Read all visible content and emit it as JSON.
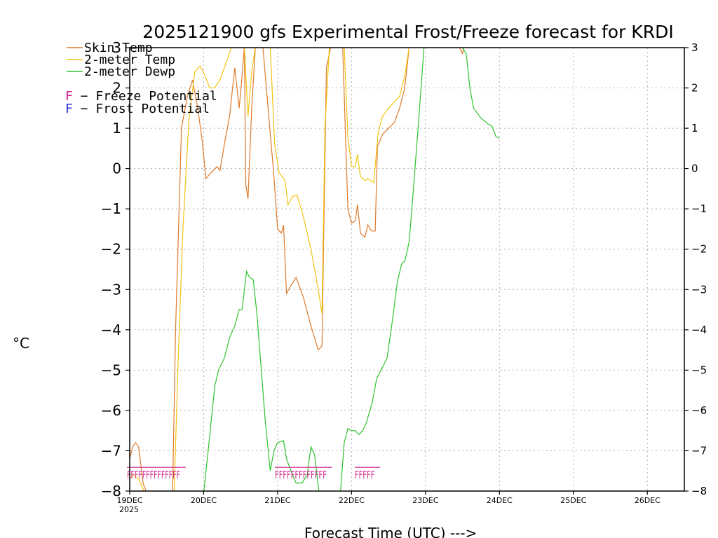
{
  "chart_data": {
    "type": "line",
    "title": "2025121900 gfs Experimental Frost/Freeze forecast for KRDI",
    "ylabel": "°C",
    "xlabel": "Forecast Time (UTC) --->",
    "ylim": [
      -8,
      3
    ],
    "yticks": [
      "3",
      "2",
      "1",
      "0",
      "−1",
      "−2",
      "−3",
      "−4",
      "−5",
      "−6",
      "−7",
      "−8"
    ],
    "ytick_values": [
      3,
      2,
      1,
      0,
      -1,
      -2,
      -3,
      -4,
      -5,
      -6,
      -7,
      -8
    ],
    "right_yticks": [
      "3",
      "2",
      "1",
      "0",
      "−1",
      "−2",
      "−3",
      "−4",
      "−5",
      "−6",
      "−7",
      "−8"
    ],
    "xlim_days": [
      0,
      7.5
    ],
    "xticks": [
      {
        "label": "19DEC",
        "day": 0
      },
      {
        "label": "20DEC",
        "day": 1
      },
      {
        "label": "21DEC",
        "day": 2
      },
      {
        "label": "22DEC",
        "day": 3
      },
      {
        "label": "23DEC",
        "day": 4
      },
      {
        "label": "24DEC",
        "day": 5
      },
      {
        "label": "25DEC",
        "day": 6
      },
      {
        "label": "26DEC",
        "day": 7
      }
    ],
    "x_year_label": "2025",
    "grid": true,
    "legend": {
      "placement": "top-left",
      "entries": [
        {
          "label": "Skin Temp",
          "color": "#e07a2a"
        },
        {
          "label": "2-meter Temp",
          "color": "#f2c413"
        },
        {
          "label": "2-meter Dewp",
          "color": "#2ec42e"
        }
      ],
      "potentials": [
        {
          "letter": "F",
          "text": " − Freeze Potential",
          "color": "#d0208a"
        },
        {
          "letter": "F",
          "text": " − Frost Potential",
          "color": "#3030d0"
        }
      ]
    },
    "series": [
      {
        "name": "Skin Temp",
        "color": "#e07a2a",
        "points": [
          [
            0,
            -7.2
          ],
          [
            0.04,
            -6.9
          ],
          [
            0.08,
            -6.8
          ],
          [
            0.12,
            -6.9
          ],
          [
            0.18,
            -7.8
          ],
          [
            0.22,
            -8
          ],
          [
            0.58,
            -8
          ],
          [
            0.62,
            -4
          ],
          [
            0.7,
            1
          ],
          [
            0.78,
            1.8
          ],
          [
            0.85,
            2.2
          ],
          [
            0.92,
            1.5
          ],
          [
            0.98,
            0.7
          ],
          [
            1.03,
            -0.25
          ],
          [
            1.1,
            -0.1
          ],
          [
            1.18,
            0.05
          ],
          [
            1.22,
            -0.05
          ],
          [
            1.28,
            0.6
          ],
          [
            1.35,
            1.3
          ],
          [
            1.42,
            2.5
          ],
          [
            1.48,
            1.5
          ],
          [
            1.52,
            2.3
          ],
          [
            1.55,
            3.2
          ],
          [
            1.57,
            -0.4
          ],
          [
            1.6,
            -0.75
          ],
          [
            1.65,
            1.5
          ],
          [
            1.7,
            3.2
          ],
          [
            1.75,
            3.2
          ],
          [
            1.8,
            3.2
          ],
          [
            1.95,
            -0.2
          ],
          [
            2.0,
            -1.5
          ],
          [
            2.05,
            -1.6
          ],
          [
            2.08,
            -1.4
          ],
          [
            2.12,
            -3.1
          ],
          [
            2.18,
            -2.9
          ],
          [
            2.25,
            -2.7
          ],
          [
            2.35,
            -3.2
          ],
          [
            2.45,
            -3.9
          ],
          [
            2.55,
            -4.5
          ],
          [
            2.6,
            -4.4
          ],
          [
            2.66,
            2.5
          ],
          [
            2.72,
            3.2
          ],
          [
            2.88,
            3.2
          ],
          [
            2.95,
            -1.0
          ],
          [
            3.0,
            -1.35
          ],
          [
            3.05,
            -1.3
          ],
          [
            3.08,
            -0.9
          ],
          [
            3.12,
            -1.6
          ],
          [
            3.18,
            -1.7
          ],
          [
            3.22,
            -1.4
          ],
          [
            3.27,
            -1.55
          ],
          [
            3.32,
            -1.55
          ],
          [
            3.35,
            0.55
          ],
          [
            3.42,
            0.85
          ],
          [
            3.5,
            1.0
          ],
          [
            3.58,
            1.15
          ],
          [
            3.65,
            1.5
          ],
          [
            3.72,
            2.0
          ],
          [
            3.78,
            3.2
          ],
          [
            4.3,
            3.2
          ],
          [
            4.45,
            3.1
          ],
          [
            4.5,
            2.85
          ],
          [
            4.52,
            3.2
          ]
        ]
      },
      {
        "name": "2-meter Temp",
        "color": "#f2c413",
        "points": [
          [
            0,
            -7.7
          ],
          [
            0.05,
            -7.6
          ],
          [
            0.12,
            -7.7
          ],
          [
            0.2,
            -8.2
          ],
          [
            0.6,
            -8.2
          ],
          [
            0.66,
            -4.5
          ],
          [
            0.72,
            -1.5
          ],
          [
            0.8,
            1.2
          ],
          [
            0.88,
            2.4
          ],
          [
            0.95,
            2.55
          ],
          [
            1.02,
            2.3
          ],
          [
            1.08,
            2.0
          ],
          [
            1.15,
            2.0
          ],
          [
            1.22,
            2.2
          ],
          [
            1.3,
            2.6
          ],
          [
            1.38,
            3.2
          ],
          [
            1.55,
            3.2
          ],
          [
            1.6,
            1.3
          ],
          [
            1.65,
            2.4
          ],
          [
            1.7,
            3.2
          ],
          [
            1.9,
            3.2
          ],
          [
            1.96,
            0.6
          ],
          [
            2.02,
            -0.1
          ],
          [
            2.06,
            -0.2
          ],
          [
            2.1,
            -0.3
          ],
          [
            2.14,
            -0.9
          ],
          [
            2.2,
            -0.7
          ],
          [
            2.26,
            -0.65
          ],
          [
            2.35,
            -1.2
          ],
          [
            2.45,
            -2.0
          ],
          [
            2.55,
            -3.0
          ],
          [
            2.6,
            -3.6
          ],
          [
            2.64,
            1.0
          ],
          [
            2.7,
            3.2
          ],
          [
            2.9,
            3.2
          ],
          [
            2.95,
            0.8
          ],
          [
            3.0,
            0.05
          ],
          [
            3.05,
            0.05
          ],
          [
            3.08,
            0.35
          ],
          [
            3.12,
            -0.2
          ],
          [
            3.18,
            -0.3
          ],
          [
            3.22,
            -0.25
          ],
          [
            3.3,
            -0.35
          ],
          [
            3.36,
            0.9
          ],
          [
            3.42,
            1.3
          ],
          [
            3.5,
            1.5
          ],
          [
            3.58,
            1.65
          ],
          [
            3.65,
            1.8
          ],
          [
            3.72,
            2.3
          ],
          [
            3.78,
            3.2
          ],
          [
            4.35,
            3.2
          ],
          [
            4.45,
            3.0
          ],
          [
            4.5,
            3.2
          ]
        ]
      },
      {
        "name": "2-meter Dewp",
        "color": "#2ec42e",
        "points": [
          [
            1.0,
            -8.2
          ],
          [
            1.05,
            -7.2
          ],
          [
            1.1,
            -6.3
          ],
          [
            1.15,
            -5.4
          ],
          [
            1.2,
            -5.0
          ],
          [
            1.28,
            -4.7
          ],
          [
            1.35,
            -4.2
          ],
          [
            1.42,
            -3.9
          ],
          [
            1.48,
            -3.5
          ],
          [
            1.52,
            -3.5
          ],
          [
            1.58,
            -2.55
          ],
          [
            1.62,
            -2.7
          ],
          [
            1.67,
            -2.75
          ],
          [
            1.72,
            -3.6
          ],
          [
            1.78,
            -5.0
          ],
          [
            1.83,
            -6.2
          ],
          [
            1.9,
            -7.5
          ],
          [
            1.95,
            -7.0
          ],
          [
            2.0,
            -6.8
          ],
          [
            2.08,
            -6.75
          ],
          [
            2.12,
            -7.2
          ],
          [
            2.18,
            -7.5
          ],
          [
            2.25,
            -7.8
          ],
          [
            2.33,
            -7.8
          ],
          [
            2.4,
            -7.6
          ],
          [
            2.45,
            -6.9
          ],
          [
            2.5,
            -7.1
          ],
          [
            2.56,
            -8.2
          ],
          [
            2.85,
            -8.2
          ],
          [
            2.9,
            -6.8
          ],
          [
            2.95,
            -6.45
          ],
          [
            3.0,
            -6.5
          ],
          [
            3.05,
            -6.5
          ],
          [
            3.1,
            -6.6
          ],
          [
            3.15,
            -6.5
          ],
          [
            3.2,
            -6.3
          ],
          [
            3.28,
            -5.8
          ],
          [
            3.34,
            -5.2
          ],
          [
            3.4,
            -5.0
          ],
          [
            3.48,
            -4.7
          ],
          [
            3.55,
            -3.8
          ],
          [
            3.62,
            -2.8
          ],
          [
            3.68,
            -2.35
          ],
          [
            3.72,
            -2.3
          ],
          [
            3.78,
            -1.8
          ],
          [
            3.85,
            -0.2
          ],
          [
            3.92,
            1.5
          ],
          [
            3.98,
            3.2
          ],
          [
            4.45,
            3.2
          ],
          [
            4.5,
            3.0
          ],
          [
            4.55,
            2.85
          ],
          [
            4.6,
            2.0
          ],
          [
            4.65,
            1.5
          ],
          [
            4.75,
            1.25
          ],
          [
            4.85,
            1.1
          ],
          [
            4.9,
            1.05
          ],
          [
            4.95,
            0.8
          ],
          [
            5.0,
            0.75
          ]
        ]
      }
    ],
    "freeze_potential_markers": [
      {
        "start_day": 0.0,
        "end_day": 0.72,
        "label": "FFFFFFFFFFFFFF",
        "color": "#d0208a"
      },
      {
        "start_day": 2.0,
        "end_day": 2.7,
        "label": "FFFFFFFFFFFFF",
        "color": "#d0208a"
      },
      {
        "start_day": 3.08,
        "end_day": 3.35,
        "label": "FFFFF",
        "color": "#d0208a"
      }
    ]
  }
}
